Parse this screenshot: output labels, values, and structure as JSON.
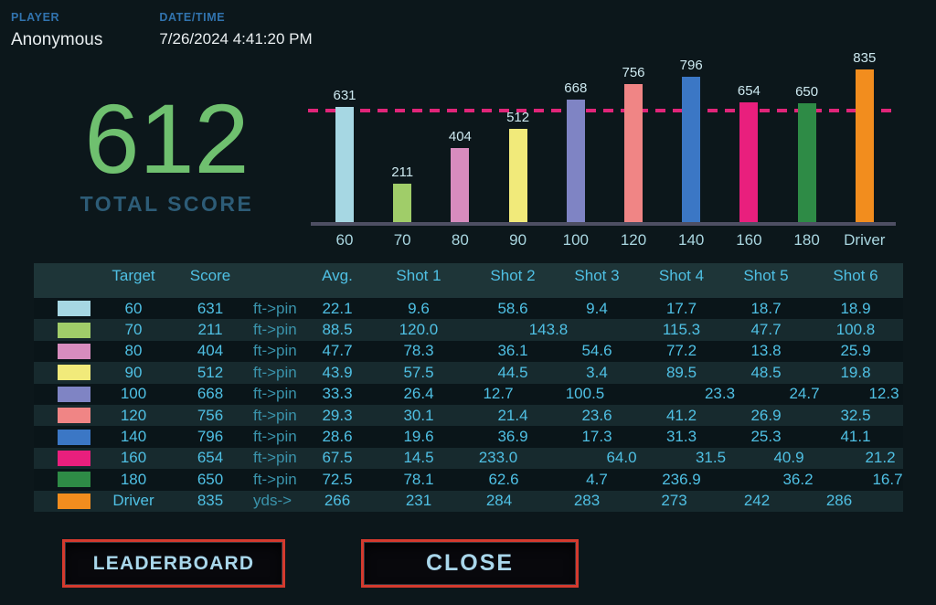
{
  "header": {
    "player_label": "PLAYER",
    "player_name": "Anonymous",
    "datetime_label": "DATE/TIME",
    "datetime_value": "7/26/2024 4:41:20 PM"
  },
  "total": {
    "score": "612",
    "caption": "TOTAL SCORE"
  },
  "chart_data": {
    "type": "bar",
    "categories": [
      "60",
      "70",
      "80",
      "90",
      "100",
      "120",
      "140",
      "160",
      "180",
      "Driver"
    ],
    "values": [
      631,
      211,
      404,
      512,
      668,
      756,
      796,
      654,
      650,
      835
    ],
    "bar_colors": [
      "#a6d7e3",
      "#a0cd69",
      "#d78cbe",
      "#f1ea7a",
      "#7f84c4",
      "#f08585",
      "#3b77c5",
      "#e91f7d",
      "#2e8b46",
      "#f28d1e"
    ],
    "data_labels": [
      "631",
      "211",
      "404",
      "512",
      "668",
      "756",
      "796",
      "654",
      "650",
      "835"
    ],
    "reference_line": {
      "value": 612,
      "color": "#e02579",
      "style": "dashed"
    },
    "title": "",
    "xlabel": "",
    "ylabel": "",
    "ylim": [
      0,
      900
    ],
    "grid": false,
    "legend": false
  },
  "table": {
    "columns": [
      "",
      "Target",
      "Score",
      "",
      "Avg.",
      "Shot 1",
      "Shot 2",
      "Shot 3",
      "Shot 4",
      "Shot 5",
      "Shot 6"
    ],
    "rows": [
      {
        "color": "#a6d7e3",
        "target": "60",
        "score": "631",
        "unit": "ft->pin",
        "avg": "22.1",
        "shots": [
          "9.6",
          "58.6",
          "9.4",
          "17.7",
          "18.7",
          "18.9"
        ]
      },
      {
        "color": "#a0cd69",
        "target": "70",
        "score": "211",
        "unit": "ft->pin",
        "avg": "88.5",
        "shots": [
          "120.0",
          "143.8",
          "",
          "115.3",
          "47.7",
          "100.8"
        ]
      },
      {
        "color": "#d78cbe",
        "target": "80",
        "score": "404",
        "unit": "ft->pin",
        "avg": "47.7",
        "shots": [
          "78.3",
          "36.1",
          "54.6",
          "77.2",
          "13.8",
          "25.9"
        ]
      },
      {
        "color": "#f1ea7a",
        "target": "90",
        "score": "512",
        "unit": "ft->pin",
        "avg": "43.9",
        "shots": [
          "57.5",
          "44.5",
          "3.4",
          "89.5",
          "48.5",
          "19.8"
        ]
      },
      {
        "color": "#7f84c4",
        "target": "100",
        "score": "668",
        "unit": "ft->pin",
        "avg": "33.3",
        "shots": [
          "26.4",
          "12.7",
          "100.5",
          "23.3",
          "24.7",
          "12.3"
        ]
      },
      {
        "color": "#f08585",
        "target": "120",
        "score": "756",
        "unit": "ft->pin",
        "avg": "29.3",
        "shots": [
          "30.1",
          "21.4",
          "23.6",
          "41.2",
          "26.9",
          "32.5"
        ]
      },
      {
        "color": "#3b77c5",
        "target": "140",
        "score": "796",
        "unit": "ft->pin",
        "avg": "28.6",
        "shots": [
          "19.6",
          "36.9",
          "17.3",
          "31.3",
          "25.3",
          "41.1"
        ]
      },
      {
        "color": "#e91f7d",
        "target": "160",
        "score": "654",
        "unit": "ft->pin",
        "avg": "67.5",
        "shots": [
          "14.5",
          "233.0",
          "64.0",
          "31.5",
          "40.9",
          "21.2"
        ]
      },
      {
        "color": "#2e8b46",
        "target": "180",
        "score": "650",
        "unit": "ft->pin",
        "avg": "72.5",
        "shots": [
          "78.1",
          "62.6",
          "4.7",
          "236.9",
          "36.2",
          "16.7"
        ]
      },
      {
        "color": "#f28d1e",
        "target": "Driver",
        "score": "835",
        "unit": "yds->",
        "avg": "266",
        "shots": [
          "231",
          "284",
          "283",
          "273",
          "242",
          "286"
        ]
      }
    ]
  },
  "buttons": {
    "leaderboard": "LEADERBOARD",
    "close": "CLOSE"
  },
  "colors": {
    "background": "#0c171b",
    "label_blue": "#3173ae",
    "score_green": "#6fc06f",
    "caption_blue": "#2d5c77",
    "table_text": "#4fc0e4",
    "unit_text": "#3a93ab",
    "reference_line": "#e02579",
    "button_border_red": "#d43a2e",
    "button_text": "#a9d7eb"
  }
}
